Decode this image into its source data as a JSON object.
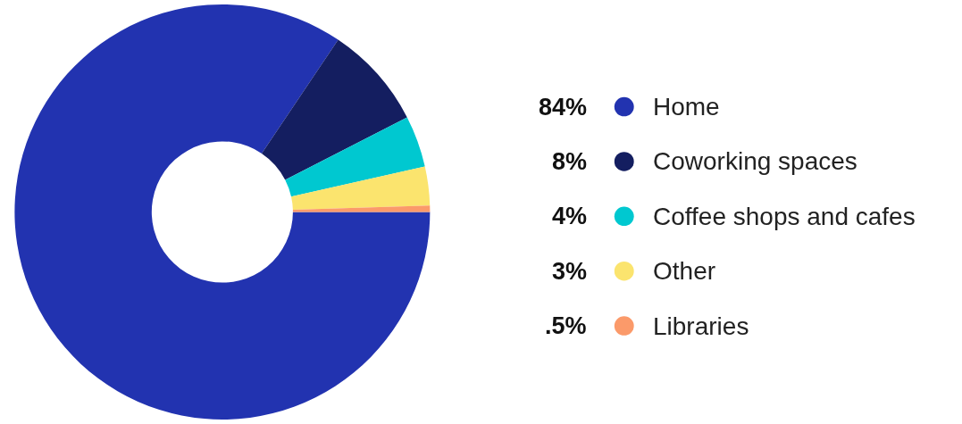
{
  "chart_data": {
    "type": "donut",
    "categories": [
      "Home",
      "Coworking spaces",
      "Coffee shops and cafes",
      "Other",
      "Libraries"
    ],
    "values": [
      84,
      8,
      4,
      3,
      0.5
    ],
    "colors": [
      "#2233b0",
      "#141e60",
      "#00c8d0",
      "#fbe46e",
      "#fb9a6a"
    ],
    "value_labels": [
      "84%",
      "8%",
      "4%",
      "3%",
      ".5%"
    ],
    "legend": "right"
  }
}
